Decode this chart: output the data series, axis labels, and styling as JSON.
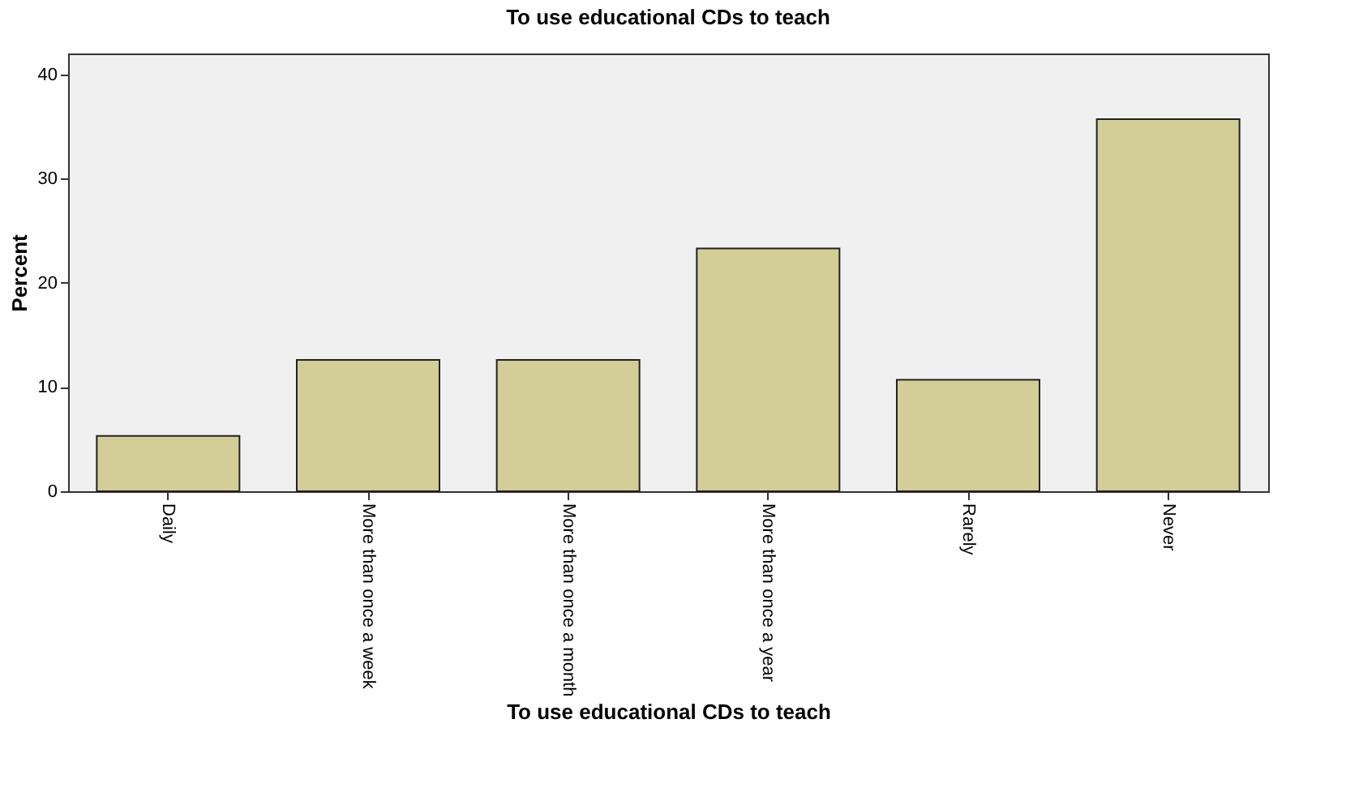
{
  "chart_data": {
    "type": "bar",
    "title": "To use educational CDs to teach",
    "xlabel": "To use educational CDs to teach",
    "ylabel": "Percent",
    "categories": [
      "Daily",
      "More than once a week",
      "More than once a month",
      "More than once a year",
      "Rarely",
      "Never"
    ],
    "values": [
      5.3,
      12.6,
      12.6,
      23.3,
      10.7,
      35.7
    ],
    "color": "#d3ce97",
    "ylim": [
      0,
      42
    ],
    "yticks": [
      0,
      10,
      20,
      30,
      40
    ],
    "grid": false
  }
}
